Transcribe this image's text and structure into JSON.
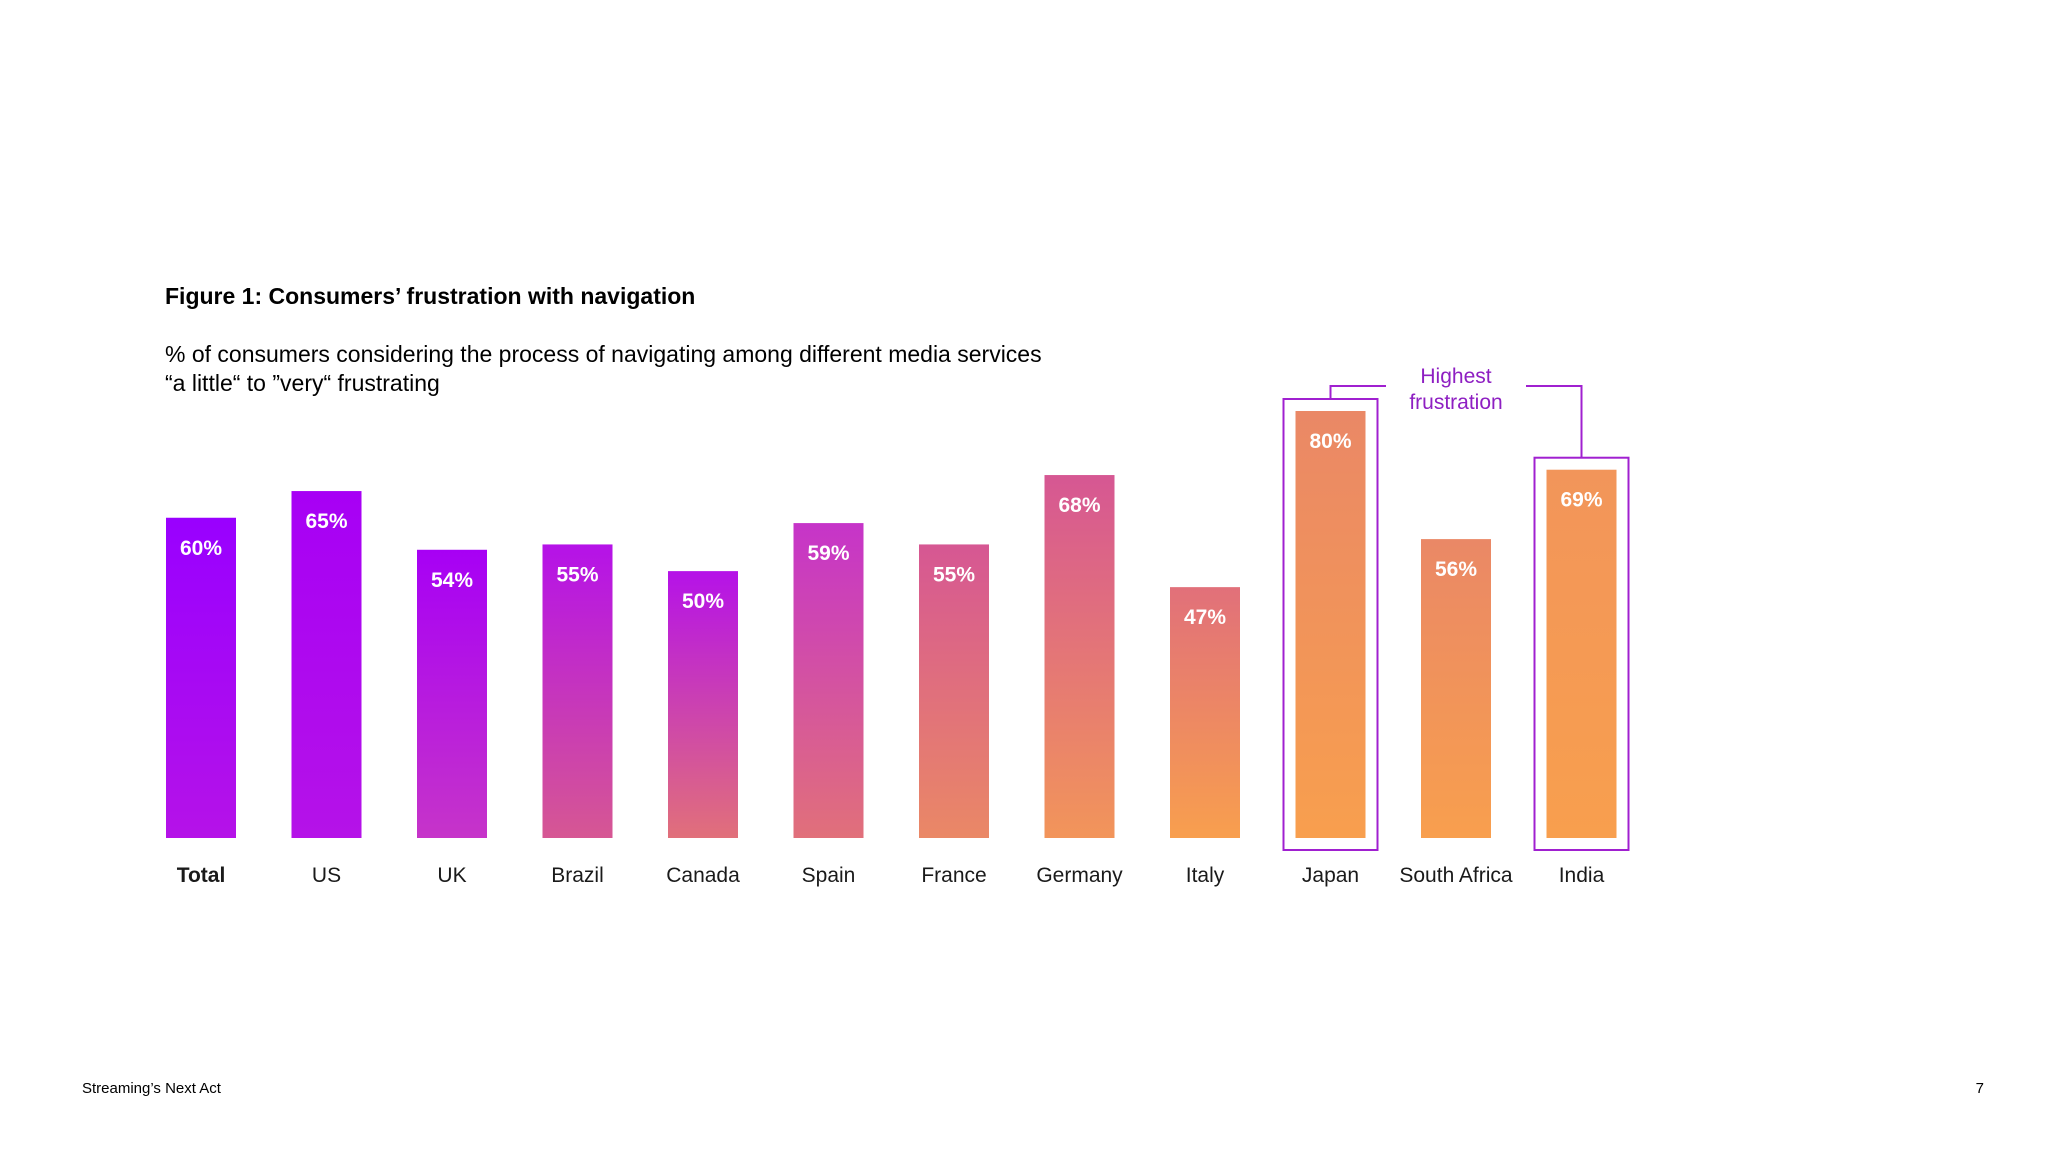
{
  "figure_title": "Figure 1: Consumers’ frustration with navigation",
  "subtitle_line1": "% of consumers considering the process of navigating among different media services",
  "subtitle_line2": "“a little“ to ”very“ frustrating",
  "footer": {
    "left": "Streaming’s Next Act",
    "page_number": "7"
  },
  "chart_data": {
    "type": "bar",
    "title": "Figure 1: Consumers’ frustration with navigation",
    "ylabel": "",
    "xlabel": "",
    "ylim": [
      0,
      100
    ],
    "grid": false,
    "categories": [
      "Total",
      "US",
      "UK",
      "Brazil",
      "Canada",
      "Spain",
      "France",
      "Germany",
      "Italy",
      "Japan",
      "South Africa",
      "India"
    ],
    "values": [
      60,
      65,
      54,
      55,
      50,
      59,
      55,
      68,
      47,
      80,
      56,
      69
    ],
    "value_labels": [
      "60%",
      "65%",
      "54%",
      "55%",
      "50%",
      "59%",
      "55%",
      "68%",
      "47%",
      "80%",
      "56%",
      "69%"
    ],
    "bold_categories": [
      "Total"
    ],
    "highlighted": [
      "Japan",
      "India"
    ],
    "annotation": {
      "line1": "Highest",
      "line2": "frustration",
      "targets": [
        "Japan",
        "India"
      ]
    },
    "colors": {
      "gradient_stops": [
        "#9900ff",
        "#a700f5",
        "#b512e8",
        "#c634c9",
        "#d65793",
        "#e1707a",
        "#ea8866",
        "#f2955a",
        "#f89f4e"
      ],
      "highlight_outline": "#a020d0",
      "annotation_text": "#8e1fc2",
      "label_text": "#ffffff"
    }
  }
}
